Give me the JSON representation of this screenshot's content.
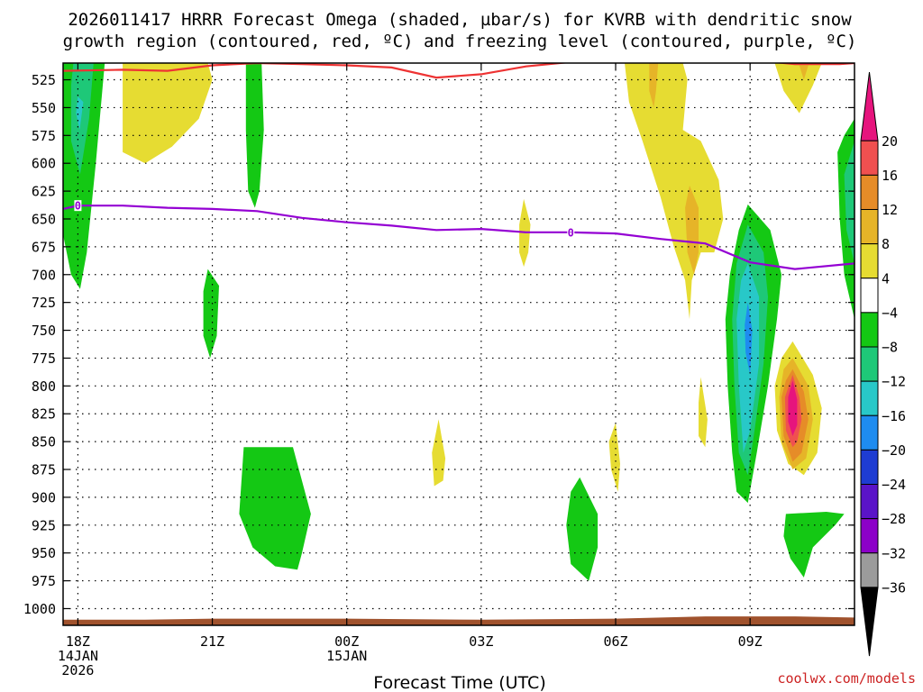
{
  "chart_data": {
    "type": "time-height-contour",
    "title_line1": "2026011417 HRRR Forecast Omega (shaded, µbar/s) for KVRB with dendritic snow",
    "title_line2": "growth region (contoured, red, ºC) and freezing level (contoured, purple, ºC)",
    "xlabel": "Forecast Time (UTC)",
    "credit": "coolwx.com/models",
    "x_hours_range": [
      -0.33,
      17.33
    ],
    "y_range_hpa": [
      1015,
      510
    ],
    "y_ticks": [
      525,
      550,
      575,
      600,
      625,
      650,
      675,
      700,
      725,
      750,
      775,
      800,
      825,
      850,
      875,
      900,
      925,
      950,
      975,
      1000
    ],
    "x_ticks": [
      {
        "hour": 0,
        "lines": [
          "18Z",
          "14JAN",
          "2026"
        ]
      },
      {
        "hour": 3,
        "lines": [
          "21Z"
        ]
      },
      {
        "hour": 6,
        "lines": [
          "00Z",
          "15JAN"
        ]
      },
      {
        "hour": 9,
        "lines": [
          "03Z"
        ]
      },
      {
        "hour": 12,
        "lines": [
          "06Z"
        ]
      },
      {
        "hour": 15,
        "lines": [
          "09Z"
        ]
      }
    ],
    "colorbar": {
      "levels": [
        -36,
        -32,
        -28,
        -24,
        -20,
        -16,
        -12,
        -8,
        -4,
        4,
        8,
        12,
        16,
        20
      ],
      "labels": [
        "20",
        "16",
        "12",
        "8",
        "4",
        "−4",
        "−8",
        "−12",
        "−16",
        "−20",
        "−24",
        "−28",
        "−32",
        "−36"
      ],
      "colors": [
        "#000000",
        "#9b9b9b",
        "#8c00c8",
        "#5a14c8",
        "#1e3cd2",
        "#1e8cf0",
        "#28c8c8",
        "#1ec878",
        "#14c814",
        "#ffffff",
        "#e6dc32",
        "#e6b428",
        "#e68c28",
        "#f05050",
        "#e6147d"
      ]
    },
    "freezing_level": {
      "color": "#9400d3",
      "label": "0",
      "points": [
        [
          -0.33,
          641
        ],
        [
          0,
          638
        ],
        [
          1,
          638
        ],
        [
          2,
          640
        ],
        [
          3,
          641
        ],
        [
          4,
          643
        ],
        [
          5,
          649
        ],
        [
          6,
          653
        ],
        [
          7,
          656
        ],
        [
          8,
          660
        ],
        [
          9,
          659
        ],
        [
          10,
          662
        ],
        [
          11,
          662
        ],
        [
          12,
          663
        ],
        [
          13,
          668
        ],
        [
          14,
          672
        ],
        [
          15,
          689
        ],
        [
          16,
          695
        ],
        [
          17.33,
          690
        ]
      ],
      "label_at": [
        [
          0,
          638
        ],
        [
          11,
          662
        ]
      ]
    },
    "dgz_contour": {
      "color": "#ee3333",
      "segments": [
        [
          [
            -0.33,
            517
          ],
          [
            1,
            516
          ],
          [
            2,
            517
          ],
          [
            3,
            512
          ],
          [
            4,
            510
          ],
          [
            5,
            511
          ],
          [
            6,
            512
          ],
          [
            7,
            514
          ],
          [
            8,
            523
          ],
          [
            9,
            520
          ],
          [
            10,
            513
          ],
          [
            11,
            509
          ]
        ],
        [
          [
            15.5,
            509
          ],
          [
            16,
            511
          ],
          [
            17,
            511
          ],
          [
            17.33,
            510
          ]
        ]
      ]
    },
    "omega_regions": [
      {
        "value": -4,
        "color": "#14c814",
        "points": [
          [
            -0.6,
            510
          ],
          [
            0.6,
            510
          ],
          [
            0.4,
            600
          ],
          [
            0.2,
            680
          ],
          [
            0.05,
            713
          ],
          [
            -0.15,
            700
          ],
          [
            -0.45,
            640
          ],
          [
            -0.6,
            580
          ]
        ]
      },
      {
        "value": -8,
        "color": "#1ec878",
        "points": [
          [
            -0.1,
            510
          ],
          [
            0.35,
            510
          ],
          [
            0.25,
            560
          ],
          [
            0.05,
            610
          ],
          [
            -0.15,
            580
          ],
          [
            -0.15,
            530
          ]
        ]
      },
      {
        "value": -12,
        "color": "#28c8c8",
        "points": [
          [
            0.0,
            540
          ],
          [
            0.12,
            545
          ],
          [
            0.04,
            570
          ],
          [
            -0.04,
            555
          ]
        ]
      },
      {
        "value": 4,
        "color": "#e6dc32",
        "points": [
          [
            1.0,
            510
          ],
          [
            2.9,
            510
          ],
          [
            3.0,
            525
          ],
          [
            2.7,
            560
          ],
          [
            2.1,
            585
          ],
          [
            1.5,
            600
          ],
          [
            1.0,
            590
          ]
        ]
      },
      {
        "value": -4,
        "color": "#14c814",
        "points": [
          [
            3.75,
            510
          ],
          [
            4.1,
            510
          ],
          [
            4.15,
            570
          ],
          [
            4.05,
            625
          ],
          [
            3.95,
            640
          ],
          [
            3.8,
            625
          ],
          [
            3.75,
            570
          ]
        ]
      },
      {
        "value": -4,
        "color": "#14c814",
        "points": [
          [
            2.9,
            695
          ],
          [
            3.15,
            710
          ],
          [
            3.1,
            755
          ],
          [
            2.95,
            775
          ],
          [
            2.8,
            755
          ],
          [
            2.8,
            715
          ]
        ]
      },
      {
        "value": 4,
        "color": "#e6dc32",
        "points": [
          [
            9.95,
            632
          ],
          [
            10.1,
            655
          ],
          [
            10.05,
            680
          ],
          [
            9.95,
            693
          ],
          [
            9.85,
            680
          ],
          [
            9.85,
            655
          ]
        ]
      },
      {
        "value": 4,
        "color": "#e6dc32",
        "points": [
          [
            12.2,
            510
          ],
          [
            13.5,
            510
          ],
          [
            13.6,
            525
          ],
          [
            13.5,
            570
          ],
          [
            13.9,
            580
          ],
          [
            14.3,
            615
          ],
          [
            14.4,
            650
          ],
          [
            14.2,
            680
          ],
          [
            13.9,
            680
          ],
          [
            13.7,
            705
          ],
          [
            13.65,
            740
          ],
          [
            13.55,
            705
          ],
          [
            13.3,
            675
          ],
          [
            13.0,
            630
          ],
          [
            12.6,
            580
          ],
          [
            12.3,
            545
          ]
        ]
      },
      {
        "value": 8,
        "color": "#e6b428",
        "points": [
          [
            12.75,
            510
          ],
          [
            12.95,
            510
          ],
          [
            12.9,
            535
          ],
          [
            12.85,
            550
          ],
          [
            12.75,
            535
          ]
        ]
      },
      {
        "value": 8,
        "color": "#e6b428",
        "points": [
          [
            13.65,
            620
          ],
          [
            13.85,
            640
          ],
          [
            13.85,
            680
          ],
          [
            13.75,
            700
          ],
          [
            13.6,
            680
          ],
          [
            13.55,
            640
          ]
        ]
      },
      {
        "value": -4,
        "color": "#14c814",
        "points": [
          [
            14.95,
            637
          ],
          [
            15.45,
            660
          ],
          [
            15.7,
            700
          ],
          [
            15.6,
            740
          ],
          [
            15.4,
            800
          ],
          [
            15.15,
            860
          ],
          [
            14.95,
            905
          ],
          [
            14.7,
            895
          ],
          [
            14.6,
            860
          ],
          [
            14.5,
            800
          ],
          [
            14.45,
            740
          ],
          [
            14.55,
            700
          ],
          [
            14.75,
            660
          ]
        ]
      },
      {
        "value": -8,
        "color": "#1ec878",
        "points": [
          [
            14.95,
            655
          ],
          [
            15.3,
            680
          ],
          [
            15.4,
            720
          ],
          [
            15.3,
            780
          ],
          [
            15.1,
            840
          ],
          [
            14.95,
            880
          ],
          [
            14.75,
            860
          ],
          [
            14.65,
            800
          ],
          [
            14.6,
            740
          ],
          [
            14.7,
            690
          ]
        ]
      },
      {
        "value": -12,
        "color": "#28c8c8",
        "points": [
          [
            14.95,
            690
          ],
          [
            15.2,
            720
          ],
          [
            15.2,
            780
          ],
          [
            15.0,
            840
          ],
          [
            14.85,
            860
          ],
          [
            14.75,
            800
          ],
          [
            14.7,
            740
          ],
          [
            14.8,
            705
          ]
        ]
      },
      {
        "value": -16,
        "color": "#1e8cf0",
        "points": [
          [
            14.95,
            725
          ],
          [
            15.05,
            750
          ],
          [
            15.0,
            790
          ],
          [
            14.9,
            770
          ],
          [
            14.88,
            745
          ]
        ]
      },
      {
        "value": 4,
        "color": "#e6dc32",
        "points": [
          [
            15.95,
            760
          ],
          [
            16.4,
            790
          ],
          [
            16.6,
            820
          ],
          [
            16.5,
            860
          ],
          [
            16.2,
            880
          ],
          [
            15.85,
            870
          ],
          [
            15.6,
            840
          ],
          [
            15.55,
            800
          ],
          [
            15.7,
            775
          ]
        ]
      },
      {
        "value": 8,
        "color": "#e6b428",
        "points": [
          [
            15.95,
            775
          ],
          [
            16.3,
            800
          ],
          [
            16.4,
            830
          ],
          [
            16.25,
            865
          ],
          [
            15.95,
            875
          ],
          [
            15.7,
            850
          ],
          [
            15.65,
            810
          ],
          [
            15.75,
            785
          ]
        ]
      },
      {
        "value": 12,
        "color": "#e68c28",
        "points": [
          [
            15.95,
            785
          ],
          [
            16.2,
            805
          ],
          [
            16.3,
            830
          ],
          [
            16.15,
            860
          ],
          [
            15.95,
            868
          ],
          [
            15.75,
            845
          ],
          [
            15.7,
            810
          ],
          [
            15.8,
            795
          ]
        ]
      },
      {
        "value": 16,
        "color": "#f05050",
        "points": [
          [
            15.95,
            790
          ],
          [
            16.1,
            810
          ],
          [
            16.15,
            830
          ],
          [
            16.05,
            850
          ],
          [
            15.95,
            855
          ],
          [
            15.8,
            840
          ],
          [
            15.78,
            810
          ]
        ]
      },
      {
        "value": 20,
        "color": "#e6147d",
        "points": [
          [
            15.95,
            795
          ],
          [
            16.05,
            812
          ],
          [
            16.05,
            835
          ],
          [
            15.95,
            845
          ],
          [
            15.85,
            832
          ],
          [
            15.85,
            810
          ]
        ]
      },
      {
        "value": -4,
        "color": "#14c814",
        "points": [
          [
            17.33,
            560
          ],
          [
            17.33,
            740
          ],
          [
            17.1,
            700
          ],
          [
            17.0,
            650
          ],
          [
            16.95,
            590
          ],
          [
            17.1,
            575
          ]
        ]
      },
      {
        "value": -8,
        "color": "#1ec878",
        "points": [
          [
            17.33,
            580
          ],
          [
            17.33,
            690
          ],
          [
            17.15,
            660
          ],
          [
            17.1,
            610
          ]
        ]
      },
      {
        "value": 4,
        "color": "#e6dc32",
        "points": [
          [
            15.55,
            510
          ],
          [
            16.6,
            510
          ],
          [
            16.4,
            530
          ],
          [
            16.1,
            555
          ],
          [
            15.75,
            535
          ]
        ]
      },
      {
        "value": 8,
        "color": "#e6b428",
        "points": [
          [
            16.1,
            512
          ],
          [
            16.3,
            512
          ],
          [
            16.2,
            525
          ]
        ]
      },
      {
        "value": -4,
        "color": "#14c814",
        "points": [
          [
            15.8,
            915
          ],
          [
            16.7,
            913
          ],
          [
            17.1,
            915
          ],
          [
            16.9,
            925
          ],
          [
            16.4,
            945
          ],
          [
            16.2,
            972
          ],
          [
            15.9,
            955
          ],
          [
            15.75,
            935
          ]
        ]
      },
      {
        "value": -4,
        "color": "#14c814",
        "points": [
          [
            3.7,
            855
          ],
          [
            4.8,
            855
          ],
          [
            5.2,
            915
          ],
          [
            5.0,
            950
          ],
          [
            4.9,
            965
          ],
          [
            4.4,
            962
          ],
          [
            3.9,
            945
          ],
          [
            3.6,
            915
          ]
        ]
      },
      {
        "value": -4,
        "color": "#14c814",
        "points": [
          [
            11.2,
            882
          ],
          [
            11.6,
            915
          ],
          [
            11.6,
            945
          ],
          [
            11.4,
            975
          ],
          [
            11.0,
            960
          ],
          [
            10.9,
            925
          ],
          [
            11.0,
            895
          ]
        ]
      },
      {
        "value": 4,
        "color": "#e6dc32",
        "points": [
          [
            8.05,
            830
          ],
          [
            8.2,
            865
          ],
          [
            8.15,
            885
          ],
          [
            7.95,
            890
          ],
          [
            7.9,
            860
          ]
        ]
      },
      {
        "value": 4,
        "color": "#e6dc32",
        "points": [
          [
            12.0,
            833
          ],
          [
            12.1,
            870
          ],
          [
            12.05,
            895
          ],
          [
            11.9,
            875
          ],
          [
            11.85,
            850
          ]
        ]
      },
      {
        "value": 4,
        "color": "#e6dc32",
        "points": [
          [
            13.9,
            792
          ],
          [
            14.05,
            830
          ],
          [
            14.0,
            855
          ],
          [
            13.85,
            845
          ],
          [
            13.85,
            815
          ]
        ]
      }
    ],
    "terrain": {
      "color": "#a0522d",
      "points": [
        [
          -0.33,
          1010
        ],
        [
          1.5,
          1010
        ],
        [
          3,
          1009
        ],
        [
          6,
          1009
        ],
        [
          9,
          1010
        ],
        [
          12,
          1009
        ],
        [
          14,
          1007
        ],
        [
          16,
          1007
        ],
        [
          17.33,
          1008
        ]
      ]
    }
  }
}
